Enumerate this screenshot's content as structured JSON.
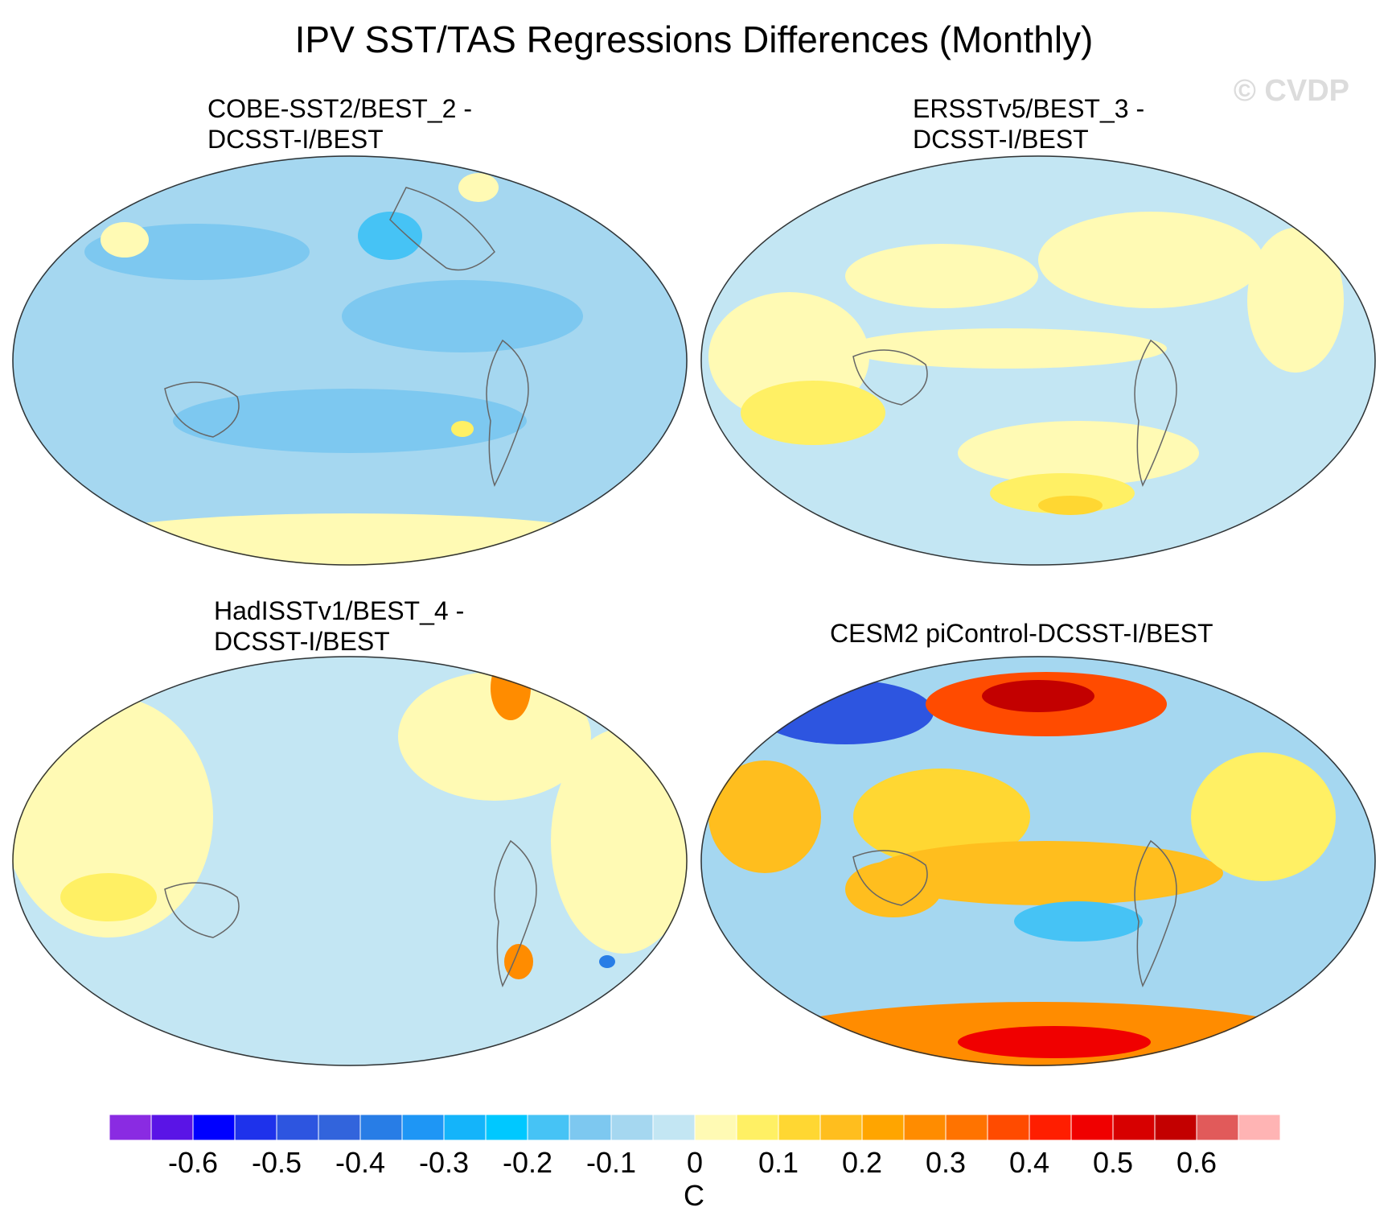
{
  "title": "IPV SST/TAS Regressions Differences (Monthly)",
  "watermark": "© CVDP",
  "panels": [
    {
      "line1": "COBE-SST2/BEST_2 -",
      "line2": "DCSST-I/BEST",
      "projection": "Robinson-like global",
      "dominant_range": "-0.2 to 0.1"
    },
    {
      "line1": "ERSSTv5/BEST_3 -",
      "line2": "DCSST-I/BEST",
      "projection": "Robinson-like global",
      "dominant_range": "-0.1 to 0.2"
    },
    {
      "line1": "HadISSTv1/BEST_4 -",
      "line2": "DCSST-I/BEST",
      "projection": "Robinson-like global",
      "dominant_range": "-0.2 to 0.3"
    },
    {
      "line1": "CESM2 piControl-DCSST-I/BEST",
      "line2": "",
      "projection": "Robinson-like global",
      "dominant_range": "-0.5 to 0.65"
    }
  ],
  "colorbar": {
    "units": "C",
    "labels": [
      "-0.6",
      "-0.5",
      "-0.4",
      "-0.3",
      "-0.2",
      "-0.1",
      "0",
      "0.1",
      "0.2",
      "0.3",
      "0.4",
      "0.5",
      "0.6"
    ],
    "colors": [
      "#8a2be2",
      "#5a14e6",
      "#0000ff",
      "#1e32eb",
      "#2d55e0",
      "#3264dc",
      "#287de6",
      "#1e96f5",
      "#14b4fa",
      "#00c8ff",
      "#46c3f5",
      "#7dc8f0",
      "#a5d7f0",
      "#c3e6f3",
      "#fffab4",
      "#fff064",
      "#ffd732",
      "#ffbe1e",
      "#ffa500",
      "#ff8c00",
      "#ff7300",
      "#ff4b00",
      "#ff1e00",
      "#f00000",
      "#d70000",
      "#c30000",
      "#e15a5a",
      "#ffb4b4"
    ]
  }
}
